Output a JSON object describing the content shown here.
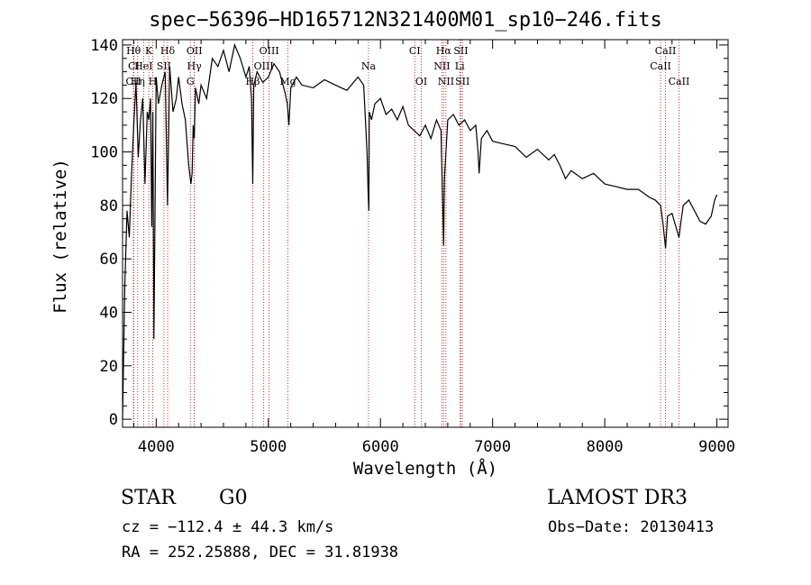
{
  "chart_data": {
    "type": "line",
    "title": "spec−56396−HD165712N321400M01_sp10−246.fits",
    "xlabel": "Wavelength (Å)",
    "ylabel": "Flux (relative)",
    "xlim": [
      3700,
      9100
    ],
    "ylim": [
      -3,
      142
    ],
    "xticks": [
      4000,
      5000,
      6000,
      7000,
      8000,
      9000
    ],
    "yticks": [
      0,
      20,
      40,
      60,
      80,
      100,
      120,
      140
    ],
    "series": [
      {
        "name": "flux",
        "x": [
          3700,
          3720,
          3740,
          3760,
          3780,
          3800,
          3820,
          3840,
          3860,
          3880,
          3900,
          3920,
          3935,
          3950,
          3960,
          3970,
          3980,
          4000,
          4020,
          4050,
          4080,
          4101,
          4120,
          4150,
          4180,
          4200,
          4230,
          4260,
          4290,
          4310,
          4320,
          4330,
          4340,
          4350,
          4380,
          4400,
          4450,
          4500,
          4550,
          4600,
          4650,
          4700,
          4750,
          4800,
          4830,
          4850,
          4861,
          4870,
          4900,
          4950,
          5000,
          5050,
          5100,
          5150,
          5170,
          5183,
          5200,
          5250,
          5300,
          5400,
          5500,
          5600,
          5700,
          5800,
          5850,
          5880,
          5890,
          5896,
          5900,
          5920,
          5950,
          6000,
          6050,
          6100,
          6150,
          6200,
          6250,
          6300,
          6350,
          6400,
          6450,
          6500,
          6540,
          6555,
          6563,
          6570,
          6600,
          6650,
          6700,
          6750,
          6800,
          6850,
          6870,
          6880,
          6900,
          6950,
          7000,
          7100,
          7200,
          7300,
          7400,
          7500,
          7550,
          7600,
          7650,
          7700,
          7800,
          7900,
          8000,
          8100,
          8200,
          8300,
          8400,
          8450,
          8498,
          8520,
          8542,
          8560,
          8600,
          8662,
          8680,
          8700,
          8750,
          8800,
          8850,
          8900,
          8950,
          8980,
          9000
        ],
        "y": [
          0,
          50,
          78,
          68,
          92,
          110,
          126,
          98,
          112,
          120,
          88,
          115,
          112,
          120,
          72,
          115,
          30,
          128,
          118,
          125,
          130,
          80,
          132,
          115,
          120,
          128,
          118,
          112,
          95,
          88,
          92,
          110,
          105,
          124,
          118,
          125,
          120,
          135,
          132,
          138,
          130,
          140,
          135,
          128,
          132,
          120,
          88,
          125,
          130,
          126,
          128,
          133,
          130,
          122,
          118,
          110,
          124,
          128,
          125,
          124,
          127,
          125,
          123,
          128,
          125,
          100,
          85,
          78,
          115,
          112,
          118,
          120,
          114,
          116,
          112,
          117,
          110,
          108,
          106,
          110,
          105,
          112,
          108,
          80,
          65,
          90,
          112,
          114,
          110,
          112,
          108,
          110,
          100,
          92,
          105,
          108,
          104,
          103,
          102,
          98,
          101,
          97,
          99,
          95,
          90,
          93,
          90,
          92,
          88,
          87,
          86,
          86,
          83,
          82,
          80,
          73,
          64,
          76,
          77,
          68,
          74,
          80,
          82,
          78,
          74,
          73,
          76,
          82,
          84
        ]
      }
    ],
    "spectral_lines": [
      {
        "label": "Hθ",
        "wavelength": 3798,
        "row": 1
      },
      {
        "label": "K",
        "wavelength": 3934,
        "row": 1
      },
      {
        "label": "Hδ",
        "wavelength": 4102,
        "row": 1
      },
      {
        "label": "OII",
        "wavelength": 4341,
        "row": 1
      },
      {
        "label": "OIII",
        "wavelength": 5007,
        "row": 1
      },
      {
        "label": "CI",
        "wavelength": 6306,
        "row": 1
      },
      {
        "label": "Hα",
        "wavelength": 6563,
        "row": 1
      },
      {
        "label": "SII",
        "wavelength": 6717,
        "row": 1
      },
      {
        "label": "CaII",
        "wavelength": 8542,
        "row": 1
      },
      {
        "label": "CI",
        "wavelength": 3800,
        "row": 2
      },
      {
        "label": "HeI",
        "wavelength": 3888,
        "row": 2
      },
      {
        "label": "SII",
        "wavelength": 4069,
        "row": 2
      },
      {
        "label": "Hγ",
        "wavelength": 4340,
        "row": 2
      },
      {
        "label": "OIII",
        "wavelength": 4959,
        "row": 2
      },
      {
        "label": "Na",
        "wavelength": 5893,
        "row": 2
      },
      {
        "label": "NII",
        "wavelength": 6548,
        "row": 2
      },
      {
        "label": "Li",
        "wavelength": 6707,
        "row": 2
      },
      {
        "label": "CaII",
        "wavelength": 8498,
        "row": 2
      },
      {
        "label": "CII",
        "wavelength": 3797,
        "row": 3
      },
      {
        "label": "Hη",
        "wavelength": 3835,
        "row": 3
      },
      {
        "label": "H",
        "wavelength": 3970,
        "row": 3
      },
      {
        "label": "G",
        "wavelength": 4305,
        "row": 3
      },
      {
        "label": "Hβ",
        "wavelength": 4861,
        "row": 3
      },
      {
        "label": "Mg",
        "wavelength": 5175,
        "row": 3
      },
      {
        "label": "OI",
        "wavelength": 6364,
        "row": 3
      },
      {
        "label": "NII",
        "wavelength": 6584,
        "row": 3
      },
      {
        "label": "SII",
        "wavelength": 6731,
        "row": 3
      },
      {
        "label": "CaII",
        "wavelength": 8662,
        "row": 3
      }
    ]
  },
  "info": {
    "object_class": "STAR",
    "subclass": "G0",
    "survey": "LAMOST DR3",
    "cz": "cz = −112.4 ± 44.3 km/s",
    "obs_date": "Obs−Date: 20130413",
    "radec": "RA = 252.25888, DEC =  31.81938"
  },
  "colors": {
    "axis": "#000000",
    "spectrum": "#000000",
    "line_markers": "#cc0000"
  }
}
